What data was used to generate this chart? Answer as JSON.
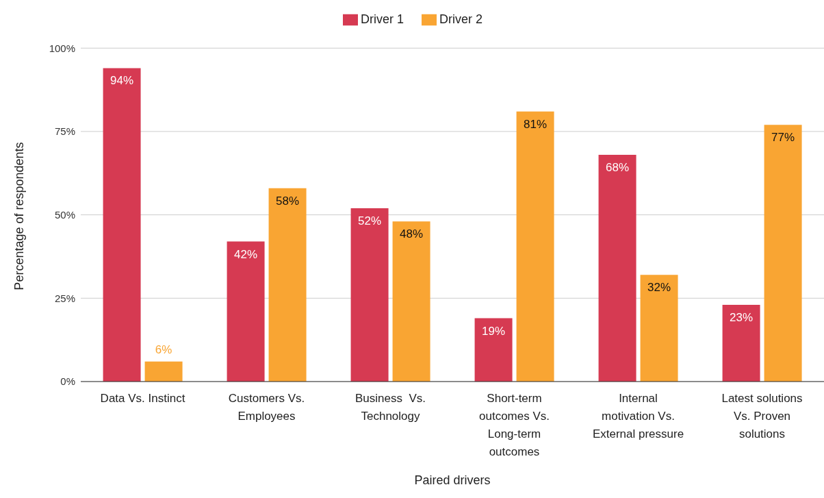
{
  "chart_data": {
    "type": "bar",
    "xlabel": "Paired drivers",
    "ylabel": "Percentage of respondents",
    "categories": [
      "Data Vs. Instinct",
      "Customers Vs. Employees",
      "Business  Vs. Technology",
      "Short-term outcomes Vs. Long-term outcomes",
      "Internal motivation Vs. External pressure",
      "Latest solutions Vs. Proven solutions"
    ],
    "series": [
      {
        "name": "Driver 1",
        "color": "#d63a52",
        "values": [
          94,
          42,
          52,
          19,
          68,
          23
        ],
        "value_labels": [
          "94%",
          "42%",
          "52%",
          "19%",
          "68%",
          "23%"
        ]
      },
      {
        "name": "Driver 2",
        "color": "#f9a533",
        "values": [
          6,
          58,
          48,
          81,
          32,
          77
        ],
        "value_labels": [
          "6%",
          "58%",
          "48%",
          "81%",
          "32%",
          "77%"
        ]
      }
    ],
    "ylim": [
      0,
      100
    ],
    "yticks": [
      {
        "value": 0,
        "label": "0%"
      },
      {
        "value": 25,
        "label": "25%"
      },
      {
        "value": 50,
        "label": "50%"
      },
      {
        "value": 75,
        "label": "75%"
      },
      {
        "value": 100,
        "label": "100%"
      }
    ],
    "grid": "y",
    "legend": "top"
  }
}
